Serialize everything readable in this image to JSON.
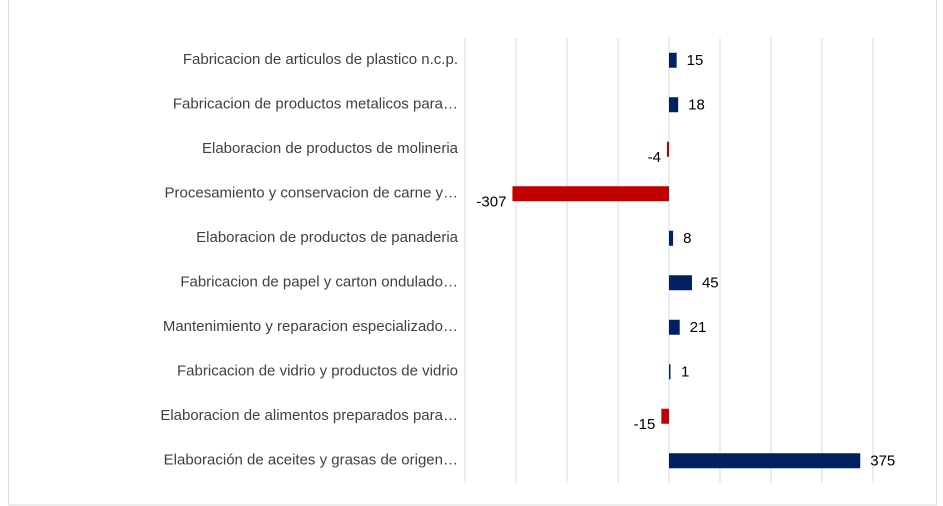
{
  "chart_data": {
    "type": "bar",
    "orientation": "horizontal",
    "categories": [
      "Fabricacion de articulos de plastico n.c.p.",
      "Fabricacion de productos metalicos para…",
      "Elaboracion de productos de molineria",
      "Procesamiento y conservacion de carne y…",
      "Elaboracion de productos de panaderia",
      "Fabricacion de papel y carton ondulado…",
      "Mantenimiento y reparacion especializado…",
      "Fabricacion de vidrio y productos de vidrio",
      "Elaboracion de alimentos preparados para…",
      "Elaboración de aceites y grasas de origen…"
    ],
    "values": [
      15,
      18,
      -4,
      -307,
      8,
      45,
      21,
      1,
      -15,
      375
    ],
    "color_positive": "#002060",
    "color_negative": "#c00000",
    "xlim": [
      -400,
      400
    ],
    "xticks": [
      -400,
      -300,
      -200,
      -100,
      0,
      100,
      200,
      300,
      400
    ],
    "grid": true
  }
}
